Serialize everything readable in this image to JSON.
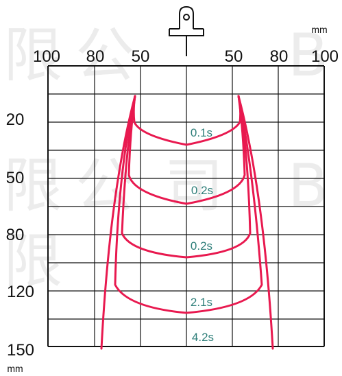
{
  "units": {
    "top_right": "mm",
    "bottom_left": "mm"
  },
  "top_axis_labels": [
    "100",
    "80",
    "50",
    "50",
    "80",
    "100"
  ],
  "left_axis_labels": [
    "20",
    "50",
    "80",
    "120",
    "150"
  ],
  "time_labels": [
    "0.1s",
    "0.2s",
    "0.2s",
    "2.1s",
    "4.2s"
  ],
  "colors": {
    "curve": "#e8194f",
    "time_label": "#2f7f7a",
    "grid": "#111111"
  },
  "icons": [
    "nozzle-icon"
  ]
}
